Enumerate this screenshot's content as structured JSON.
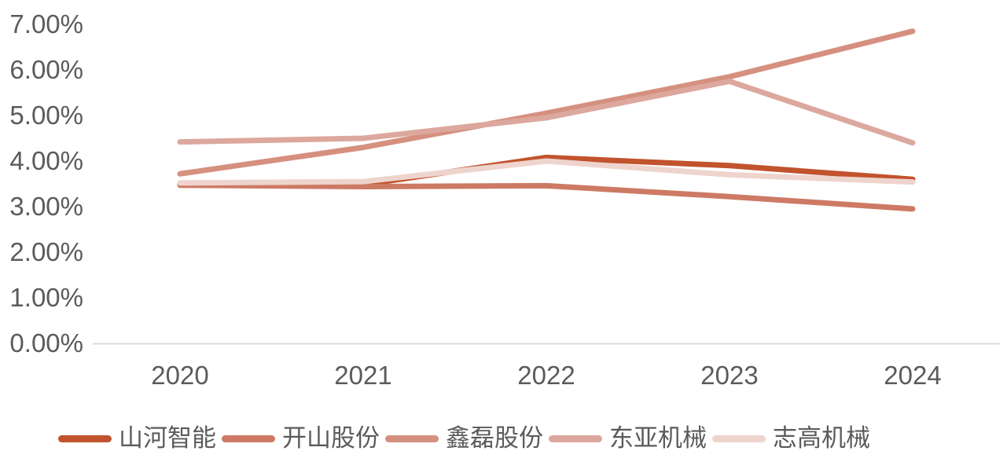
{
  "chart_data": {
    "type": "line",
    "title": "",
    "xlabel": "",
    "ylabel": "",
    "x": [
      "2020",
      "2021",
      "2022",
      "2023",
      "2024"
    ],
    "series": [
      {
        "name": "山河智能",
        "color": "#c1532d",
        "values": [
          3.5,
          3.48,
          4.08,
          3.9,
          3.6
        ]
      },
      {
        "name": "开山股份",
        "color": "#cd7a64",
        "values": [
          3.47,
          3.44,
          3.46,
          3.22,
          2.95
        ]
      },
      {
        "name": "鑫磊股份",
        "color": "#d5907f",
        "values": [
          3.72,
          4.3,
          5.05,
          5.85,
          6.85
        ]
      },
      {
        "name": "东亚机械",
        "color": "#dca89d",
        "values": [
          4.42,
          4.5,
          4.95,
          5.75,
          4.4
        ]
      },
      {
        "name": "志高机械",
        "color": "#eed4cd",
        "values": [
          3.52,
          3.55,
          4.0,
          3.7,
          3.54
        ]
      }
    ],
    "ylim": [
      0,
      7
    ],
    "ytick_labels": [
      "0.00%",
      "1.00%",
      "2.00%",
      "3.00%",
      "4.00%",
      "5.00%",
      "6.00%",
      "7.00%"
    ],
    "grid": false,
    "legend_position": "bottom"
  },
  "colors": {
    "axis_line": "#d9d9d9",
    "tick_text": "#5b5b5b",
    "background": "#ffffff"
  }
}
